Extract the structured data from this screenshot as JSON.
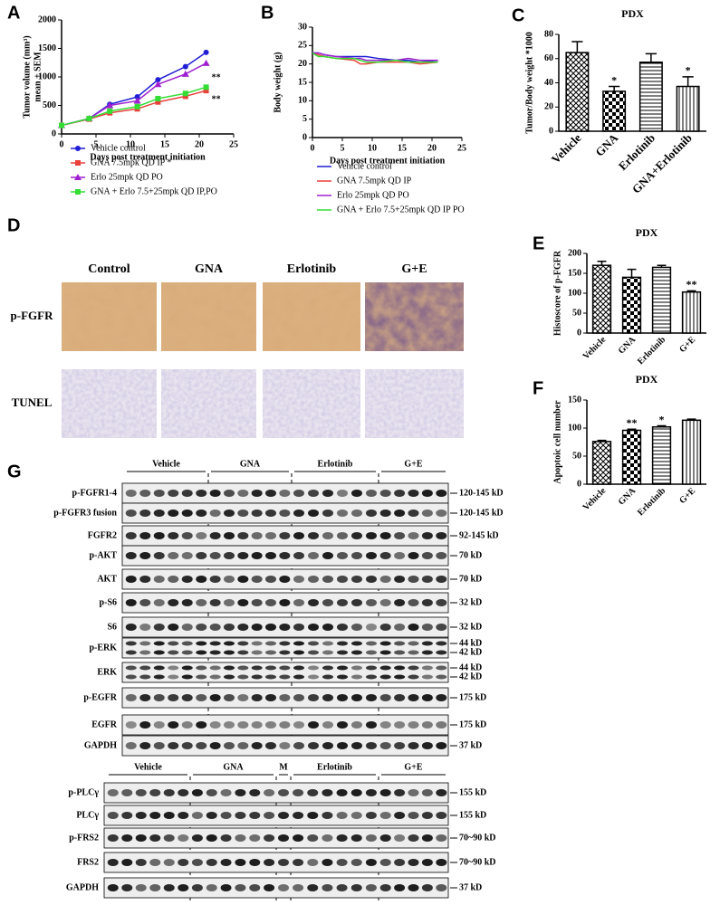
{
  "chart_data": [
    {
      "type": "line",
      "panel": "A",
      "xlabel": "Days post treatment initiation",
      "ylabel": "Tumor volume (mm³)",
      "ylabel2": "mean ± SEM",
      "x": [
        0,
        4,
        7,
        11,
        14,
        18,
        21
      ],
      "xlim": [
        0,
        25
      ],
      "xticks": [
        0,
        5,
        10,
        15,
        20,
        25
      ],
      "ylim": [
        0,
        2000
      ],
      "yticks": [
        0,
        500,
        1000,
        1500,
        2000
      ],
      "series": [
        {
          "name": "Vehicle control",
          "color": "#1f1fd6",
          "marker": "circle",
          "values": [
            150,
            270,
            520,
            650,
            950,
            1180,
            1430
          ]
        },
        {
          "name": "GNA  7.5mpk QD IP *",
          "color": "#e8413c",
          "marker": "square",
          "values": [
            150,
            260,
            370,
            440,
            560,
            660,
            760
          ],
          "note": "**"
        },
        {
          "name": "Erlo 25mpk QD PO",
          "color": "#a020d0",
          "marker": "triangle",
          "values": [
            150,
            270,
            500,
            580,
            870,
            1050,
            1240
          ]
        },
        {
          "name": "GNA + Erlo 7.5+25mpk QD IP,PO",
          "color": "#33dd33",
          "marker": "square",
          "values": [
            150,
            270,
            400,
            480,
            620,
            710,
            820
          ],
          "note": "**"
        }
      ]
    },
    {
      "type": "line",
      "panel": "B",
      "xlabel": "Days post treatment initiation",
      "ylabel": "Body weight (g)",
      "x": [
        0,
        1,
        2,
        4,
        7,
        8,
        9,
        11,
        14,
        16,
        18,
        21
      ],
      "xlim": [
        0,
        25
      ],
      "xticks": [
        0,
        5,
        10,
        15,
        20,
        25
      ],
      "ylim": [
        0,
        30
      ],
      "yticks": [
        0,
        5,
        10,
        15,
        20,
        25,
        30
      ],
      "series": [
        {
          "name": "Vehicle control",
          "color": "#1f1fd6",
          "marker": "none",
          "values": [
            23,
            23,
            22.5,
            22,
            22,
            22,
            22,
            21.5,
            21,
            21,
            20.5,
            21
          ]
        },
        {
          "name": "GNA  7.5mpk QD IP",
          "color": "#e8413c",
          "marker": "none",
          "values": [
            23,
            22.5,
            22,
            21.5,
            21,
            20,
            20,
            20.5,
            20.5,
            20.5,
            20,
            20.5
          ]
        },
        {
          "name": "Erlo 25mpk QD PO",
          "color": "#a020d0",
          "marker": "none",
          "values": [
            23,
            23,
            22.5,
            22,
            21.5,
            21.5,
            21,
            21,
            21,
            21.5,
            21,
            21
          ]
        },
        {
          "name": "GNA + Erlo 7.5+25mpk QD IP PO",
          "color": "#33dd33",
          "marker": "none",
          "values": [
            23,
            22,
            22,
            21.5,
            21.5,
            21,
            20.5,
            20.5,
            21,
            20.5,
            20.5,
            20.5
          ]
        }
      ]
    },
    {
      "type": "bar",
      "panel": "C",
      "title": "PDX",
      "ylabel": "Tumor/Body weight *1000",
      "categories": [
        "Vehicle",
        "GNA",
        "Erlotinib",
        "GNA+Erlotinib"
      ],
      "values": [
        65,
        33,
        57,
        37
      ],
      "errors": [
        9,
        4,
        7,
        8
      ],
      "significance": [
        null,
        "*",
        null,
        "*"
      ],
      "ylim": [
        0,
        80
      ],
      "yticks": [
        0,
        20,
        40,
        60,
        80
      ],
      "color": "#000000"
    },
    {
      "type": "bar",
      "panel": "E",
      "title": "PDX",
      "ylabel": "Histoscore of p-FGFR",
      "categories": [
        "Vehicle",
        "GNA",
        "Erlotinib",
        "G+E"
      ],
      "values": [
        170,
        140,
        165,
        103
      ],
      "errors": [
        10,
        20,
        5,
        3
      ],
      "significance": [
        null,
        null,
        null,
        "**"
      ],
      "ylim": [
        0,
        200
      ],
      "yticks": [
        0,
        50,
        100,
        150,
        200
      ],
      "color": "#000000"
    },
    {
      "type": "bar",
      "panel": "F",
      "title": "PDX",
      "ylabel": "Apoptoic cell number",
      "categories": [
        "Vehicle",
        "GNA",
        "Erlotinib",
        "G+E"
      ],
      "values": [
        76,
        96,
        102,
        114
      ],
      "errors": [
        2,
        2,
        2,
        2
      ],
      "significance": [
        null,
        "**",
        "*",
        null
      ],
      "ylim": [
        0,
        150
      ],
      "yticks": [
        0,
        50,
        100,
        150
      ],
      "color": "#000000"
    }
  ],
  "micrographs": {
    "panel": "D",
    "columns": [
      "Control",
      "GNA",
      "Erlotinib",
      "G+E"
    ],
    "rows": [
      "p-FGFR",
      "TUNEL"
    ]
  },
  "blots": {
    "panel": "G",
    "top": {
      "groups": [
        "Vehicle",
        "GNA",
        "Erlotinib",
        "G+E"
      ],
      "rows": [
        {
          "label": "p-FGFR1-4",
          "sizes": [
            "120-145 kD"
          ]
        },
        {
          "label": "p-FGFR3 fusion",
          "sizes": [
            "120-145 kD"
          ]
        },
        {
          "label": "FGFR2",
          "sizes": [
            "92-145 kD"
          ]
        },
        {
          "label": "p-AKT",
          "sizes": [
            "70 kD"
          ]
        },
        {
          "label": "AKT",
          "sizes": [
            "70 kD"
          ]
        },
        {
          "label": "p-S6",
          "sizes": [
            "32 kD"
          ]
        },
        {
          "label": "S6",
          "sizes": [
            "32 kD"
          ]
        },
        {
          "label": "p-ERK",
          "sizes": [
            "44 kD",
            "42 kD"
          ]
        },
        {
          "label": "ERK",
          "sizes": [
            "44 kD",
            "42 kD"
          ]
        },
        {
          "label": "p-EGFR",
          "sizes": [
            "175 kD"
          ]
        },
        {
          "label": "EGFR",
          "sizes": [
            "175 kD"
          ]
        },
        {
          "label": "GAPDH",
          "sizes": [
            "37 kD"
          ]
        }
      ]
    },
    "bottom": {
      "groups": [
        "Vehicle",
        "GNA",
        "M",
        "Erlotinib",
        "G+E"
      ],
      "rows": [
        {
          "label": "p-PLCγ",
          "sizes": [
            "155 kD"
          ]
        },
        {
          "label": "PLCγ",
          "sizes": [
            "155 kD"
          ]
        },
        {
          "label": "p-FRS2",
          "sizes": [
            "70~90 kD"
          ]
        },
        {
          "label": "FRS2",
          "sizes": [
            "70~90 kD"
          ]
        },
        {
          "label": "GAPDH",
          "sizes": [
            "37 kD"
          ]
        }
      ]
    }
  }
}
